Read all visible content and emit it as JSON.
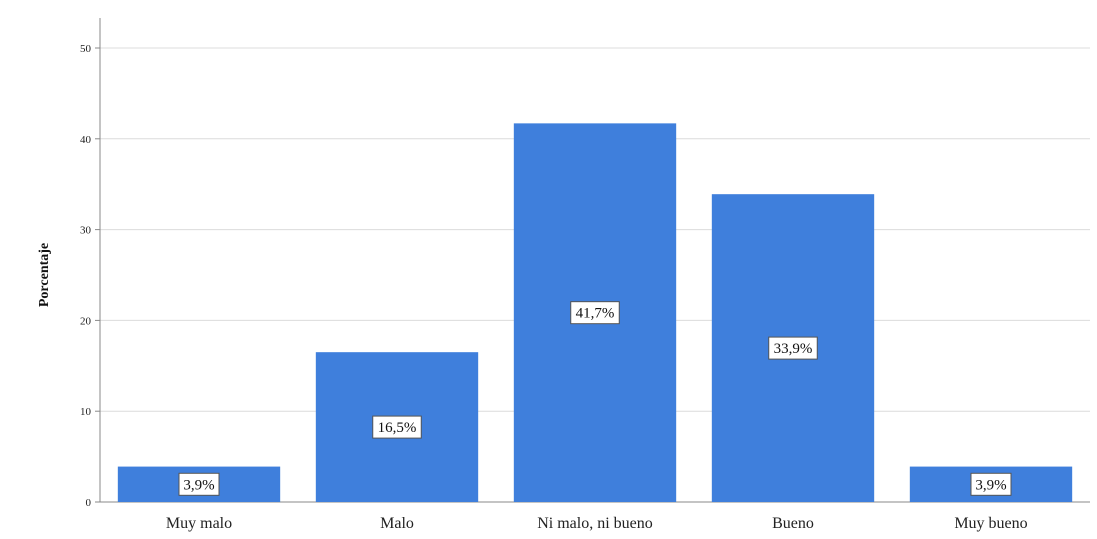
{
  "chart_data": {
    "type": "bar",
    "categories": [
      "Muy malo",
      "Malo",
      "Ni malo, ni bueno",
      "Bueno",
      "Muy bueno"
    ],
    "values": [
      3.9,
      16.5,
      41.7,
      33.9,
      3.9
    ],
    "data_labels": [
      "3,9%",
      "16,5%",
      "41,7%",
      "33,9%",
      "3,9%"
    ],
    "ylabel": "Porcentaje",
    "ylim": [
      0,
      50
    ],
    "yticks": [
      0,
      10,
      20,
      30,
      40,
      50
    ],
    "grid": true,
    "bar_color": "#3f7fdc"
  }
}
